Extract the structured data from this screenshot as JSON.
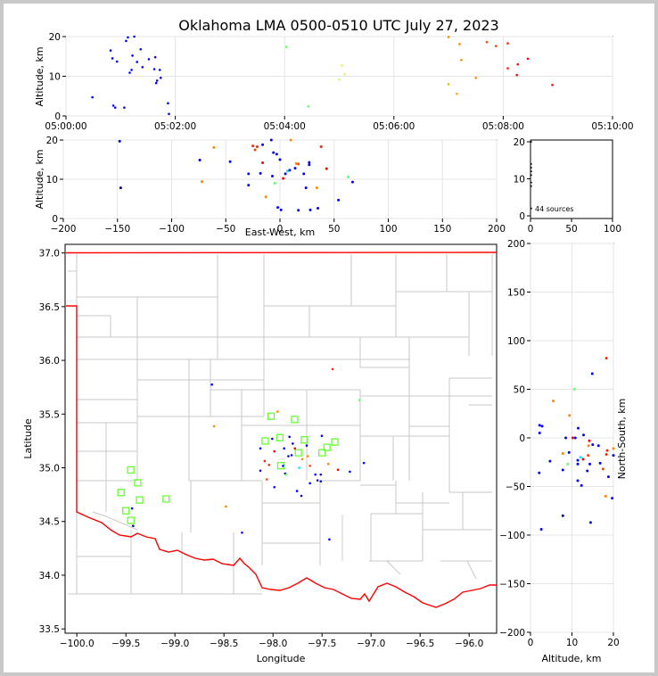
{
  "chart_data": {
    "title": "Oklahoma LMA 0500-0510 UTC July 27, 2023",
    "colors": {
      "early": "#0000ff",
      "mid": "#00e8ff",
      "midlate": "#66ff66",
      "late": "#ff8800",
      "last": "#ff0000",
      "map_counties": "#c8c8c8",
      "map_border": "#ff0000"
    },
    "panels": [
      {
        "id": "time-height",
        "type": "scatter",
        "ylabel": "Altitude, km",
        "xlim": [
          "05:00:00",
          "05:10:00"
        ],
        "ylim": [
          0,
          20
        ],
        "xticks": [
          "05:00:00",
          "05:02:00",
          "05:04:00",
          "05:06:00",
          "05:08:00",
          "05:10:00"
        ],
        "yticks": [
          "0",
          "10",
          "20"
        ],
        "points": [
          {
            "t": "05:00:29",
            "alt": 4.7,
            "c": "#0000ff"
          },
          {
            "t": "05:00:49",
            "alt": 16.5,
            "c": "#0000ff"
          },
          {
            "t": "05:00:51",
            "alt": 14.5,
            "c": "#0000ff"
          },
          {
            "t": "05:00:52",
            "alt": 2.6,
            "c": "#0000ff"
          },
          {
            "t": "05:00:54",
            "alt": 2.1,
            "c": "#0000ff"
          },
          {
            "t": "05:00:56",
            "alt": 13.7,
            "c": "#0000ff"
          },
          {
            "t": "05:01:04",
            "alt": 2.1,
            "c": "#0000ff"
          },
          {
            "t": "05:01:06",
            "alt": 18.9,
            "c": "#0000ff"
          },
          {
            "t": "05:01:08",
            "alt": 19.8,
            "c": "#0000ff"
          },
          {
            "t": "05:01:10",
            "alt": 10.9,
            "c": "#0000ff"
          },
          {
            "t": "05:01:12",
            "alt": 11.6,
            "c": "#0000ff"
          },
          {
            "t": "05:01:13",
            "alt": 15.2,
            "c": "#0000ff"
          },
          {
            "t": "05:01:15",
            "alt": 20.0,
            "c": "#0000ff"
          },
          {
            "t": "05:01:18",
            "alt": 13.6,
            "c": "#0000ff"
          },
          {
            "t": "05:01:22",
            "alt": 16.8,
            "c": "#0000ff"
          },
          {
            "t": "05:01:24",
            "alt": 12.3,
            "c": "#0000ff"
          },
          {
            "t": "05:01:31",
            "alt": 14.3,
            "c": "#0000ff"
          },
          {
            "t": "05:01:37",
            "alt": 11.8,
            "c": "#0000ff"
          },
          {
            "t": "05:01:38",
            "alt": 14.8,
            "c": "#0000ff"
          },
          {
            "t": "05:01:39",
            "alt": 8.3,
            "c": "#0000ff"
          },
          {
            "t": "05:01:40",
            "alt": 8.9,
            "c": "#0000ff"
          },
          {
            "t": "05:01:43",
            "alt": 11.6,
            "c": "#0000ff"
          },
          {
            "t": "05:01:44",
            "alt": 9.6,
            "c": "#0000ff"
          },
          {
            "t": "05:01:52",
            "alt": 3.2,
            "c": "#0000ff"
          },
          {
            "t": "05:01:53",
            "alt": 0.5,
            "c": "#0000ff"
          },
          {
            "t": "05:04:02",
            "alt": 17.4,
            "c": "#66ff66"
          },
          {
            "t": "05:04:26",
            "alt": 2.4,
            "c": "#66ff66"
          },
          {
            "t": "05:05:00",
            "alt": 9.2,
            "c": "#ccff66"
          },
          {
            "t": "05:05:03",
            "alt": 12.7,
            "c": "#ccff66"
          },
          {
            "t": "05:05:06",
            "alt": 10.5,
            "c": "#ccff66"
          },
          {
            "t": "05:07:00",
            "alt": 19.9,
            "c": "#ff8800"
          },
          {
            "t": "05:07:00",
            "alt": 8.0,
            "c": "#ffaa00"
          },
          {
            "t": "05:07:09",
            "alt": 5.6,
            "c": "#ffaa00"
          },
          {
            "t": "05:07:12",
            "alt": 18.1,
            "c": "#ff8800"
          },
          {
            "t": "05:07:14",
            "alt": 14.1,
            "c": "#ff8800"
          },
          {
            "t": "05:07:30",
            "alt": 9.6,
            "c": "#ff8800"
          },
          {
            "t": "05:07:42",
            "alt": 18.6,
            "c": "#ff4400"
          },
          {
            "t": "05:07:52",
            "alt": 17.6,
            "c": "#ff4400"
          },
          {
            "t": "05:08:05",
            "alt": 18.3,
            "c": "#ff2200"
          },
          {
            "t": "05:08:05",
            "alt": 12.0,
            "c": "#ff2200"
          },
          {
            "t": "05:08:15",
            "alt": 10.3,
            "c": "#ff0000"
          },
          {
            "t": "05:08:16",
            "alt": 13.0,
            "c": "#ff0000"
          },
          {
            "t": "05:08:27",
            "alt": 14.4,
            "c": "#ff0000"
          },
          {
            "t": "05:08:54",
            "alt": 7.8,
            "c": "#ff0000"
          }
        ]
      },
      {
        "id": "east-west-altitude",
        "type": "scatter",
        "xlabel": "East-West, km",
        "ylabel": "Altitude, km",
        "xlim": [
          -200,
          200
        ],
        "ylim": [
          0,
          20
        ],
        "xticks": [
          "−200",
          "−150",
          "−100",
          "−50",
          "0",
          "50",
          "100",
          "150",
          "200"
        ],
        "yticks": [
          "0",
          "10",
          "20"
        ]
      },
      {
        "id": "histogram",
        "type": "scatter",
        "xlim": [
          0,
          100
        ],
        "ylim": [
          0,
          20
        ],
        "xticks": [
          "0",
          "50",
          "100"
        ],
        "yticks": [
          "0",
          "10",
          "20"
        ],
        "annotation": "44 sources"
      },
      {
        "id": "plan-view",
        "type": "scatter",
        "xlabel": "Longitude",
        "ylabel": "Latitude",
        "xlim": [
          -100.12,
          -95.72
        ],
        "ylim": [
          33.46,
          37.08
        ],
        "xticks": [
          "−100.0",
          "−99.5",
          "−99.0",
          "−98.5",
          "−98.0",
          "−97.5",
          "−97.0",
          "−96.5",
          "−96.0"
        ],
        "yticks": [
          "33.5",
          "34.0",
          "34.5",
          "35.0",
          "35.5",
          "36.0",
          "36.5",
          "37.0"
        ],
        "stations": [
          {
            "lon": -99.55,
            "lat": 34.77
          },
          {
            "lon": -99.5,
            "lat": 34.6
          },
          {
            "lon": -99.45,
            "lat": 34.51
          },
          {
            "lon": -99.45,
            "lat": 34.98
          },
          {
            "lon": -99.38,
            "lat": 34.86
          },
          {
            "lon": -99.36,
            "lat": 34.7
          },
          {
            "lon": -99.09,
            "lat": 34.71
          },
          {
            "lon": -98.08,
            "lat": 35.25
          },
          {
            "lon": -98.02,
            "lat": 35.48
          },
          {
            "lon": -97.93,
            "lat": 35.28
          },
          {
            "lon": -97.92,
            "lat": 35.02
          },
          {
            "lon": -97.78,
            "lat": 35.45
          },
          {
            "lon": -97.74,
            "lat": 35.14
          },
          {
            "lon": -97.68,
            "lat": 35.26
          },
          {
            "lon": -97.5,
            "lat": 35.14
          },
          {
            "lon": -97.45,
            "lat": 35.19
          },
          {
            "lon": -97.37,
            "lat": 35.24
          }
        ]
      },
      {
        "id": "altitude-north-south",
        "type": "scatter",
        "xlabel": "Altitude, km",
        "ylabel": "North-South, km",
        "xlim": [
          0,
          20
        ],
        "ylim": [
          -200,
          200
        ],
        "xticks": [
          "0",
          "10",
          "20"
        ],
        "yticks": [
          "−200",
          "−150",
          "−100",
          "−50",
          "0",
          "50",
          "100",
          "150",
          "200"
        ]
      }
    ],
    "sources": [
      {
        "ew": -147,
        "ns": -80,
        "alt": 7.8,
        "c": "#000088"
      },
      {
        "ew": -148,
        "ns": -62,
        "alt": 19.7,
        "c": "#0000ff"
      },
      {
        "ew": -74,
        "ns": 66,
        "alt": 14.9,
        "c": "#0000ff"
      },
      {
        "ew": -72,
        "ns": 23,
        "alt": 9.4,
        "c": "#ff8800"
      },
      {
        "ew": -61,
        "ns": -60,
        "alt": 18.1,
        "c": "#ff8800"
      },
      {
        "ew": -46,
        "ns": -87,
        "alt": 14.5,
        "c": "#0000ff"
      },
      {
        "ew": -29,
        "ns": 0,
        "alt": 8.5,
        "c": "#0000ff"
      },
      {
        "ew": -29,
        "ns": -23,
        "alt": 11.4,
        "c": "#0000ff"
      },
      {
        "ew": -25,
        "ns": -13,
        "alt": 18.5,
        "c": "#ff2200"
      },
      {
        "ew": -23,
        "ns": -32,
        "alt": 17.5,
        "c": "#ff4400"
      },
      {
        "ew": -21,
        "ns": -17,
        "alt": 18.3,
        "c": "#ff2200"
      },
      {
        "ew": -18,
        "ns": 10,
        "alt": 11.5,
        "c": "#0000ff"
      },
      {
        "ew": -16,
        "ns": -40,
        "alt": 18.8,
        "c": "#0000ff"
      },
      {
        "ew": -16,
        "ns": -3,
        "alt": 14.2,
        "c": "#ff0000"
      },
      {
        "ew": -13,
        "ns": 38,
        "alt": 5.5,
        "c": "#ff8800"
      },
      {
        "ew": -8,
        "ns": -18,
        "alt": 20.0,
        "c": "#0000ff"
      },
      {
        "ew": -7,
        "ns": 0,
        "alt": 10.8,
        "c": "#0000ff"
      },
      {
        "ew": -6,
        "ns": -26,
        "alt": 16.8,
        "c": "#0000ff"
      },
      {
        "ew": -5,
        "ns": -27,
        "alt": 9.0,
        "c": "#66ff66"
      },
      {
        "ew": -3,
        "ns": -8,
        "alt": 16.4,
        "c": "#0000ff"
      },
      {
        "ew": -2,
        "ns": 12,
        "alt": 2.8,
        "c": "#0000ff"
      },
      {
        "ew": 0,
        "ns": -7,
        "alt": 15.0,
        "c": "#0000ff"
      },
      {
        "ew": 1,
        "ns": 5,
        "alt": 2.2,
        "c": "#0000ff"
      },
      {
        "ew": 3,
        "ns": 0,
        "alt": 10.2,
        "c": "#ff0000"
      },
      {
        "ew": 5,
        "ns": -44,
        "alt": 11.4,
        "c": "#0000ff"
      },
      {
        "ew": 7,
        "ns": -20,
        "alt": 12.1,
        "c": "#00e8ff"
      },
      {
        "ew": 9,
        "ns": -49,
        "alt": 12.3,
        "c": "#0000ff"
      },
      {
        "ew": 10,
        "ns": -11,
        "alt": 20.0,
        "c": "#ff8800"
      },
      {
        "ew": 14,
        "ns": 3,
        "alt": 12.8,
        "c": "#0000ff"
      },
      {
        "ew": 15,
        "ns": -8,
        "alt": 14.0,
        "c": "#ff8800"
      },
      {
        "ew": 17,
        "ns": -18,
        "alt": 13.9,
        "c": "#ff4400"
      },
      {
        "ew": 17,
        "ns": -36,
        "alt": 2.1,
        "c": "#0000ff"
      },
      {
        "ew": 22,
        "ns": -27,
        "alt": 11.4,
        "c": "#0000ff"
      },
      {
        "ew": 24,
        "ns": -33,
        "alt": 7.8,
        "c": "#0000ff"
      },
      {
        "ew": 27,
        "ns": -34,
        "alt": 13.7,
        "c": "#0000ff"
      },
      {
        "ew": 27,
        "ns": -27,
        "alt": 14.3,
        "c": "#0000ff"
      },
      {
        "ew": 28,
        "ns": 13,
        "alt": 2.2,
        "c": "#0000ff"
      },
      {
        "ew": 34,
        "ns": -16,
        "alt": 7.8,
        "c": "#ff8800"
      },
      {
        "ew": 35,
        "ns": -94,
        "alt": 2.6,
        "c": "#0000ff"
      },
      {
        "ew": 38,
        "ns": 82,
        "alt": 18.3,
        "c": "#ff2200"
      },
      {
        "ew": 43,
        "ns": -22,
        "alt": 12.7,
        "c": "#ff0000"
      },
      {
        "ew": 54,
        "ns": -24,
        "alt": 4.7,
        "c": "#0000ff"
      },
      {
        "ew": 63,
        "ns": 50,
        "alt": 10.6,
        "c": "#66ff66"
      },
      {
        "ew": 67,
        "ns": -15,
        "alt": 9.3,
        "c": "#0000ff"
      }
    ]
  }
}
